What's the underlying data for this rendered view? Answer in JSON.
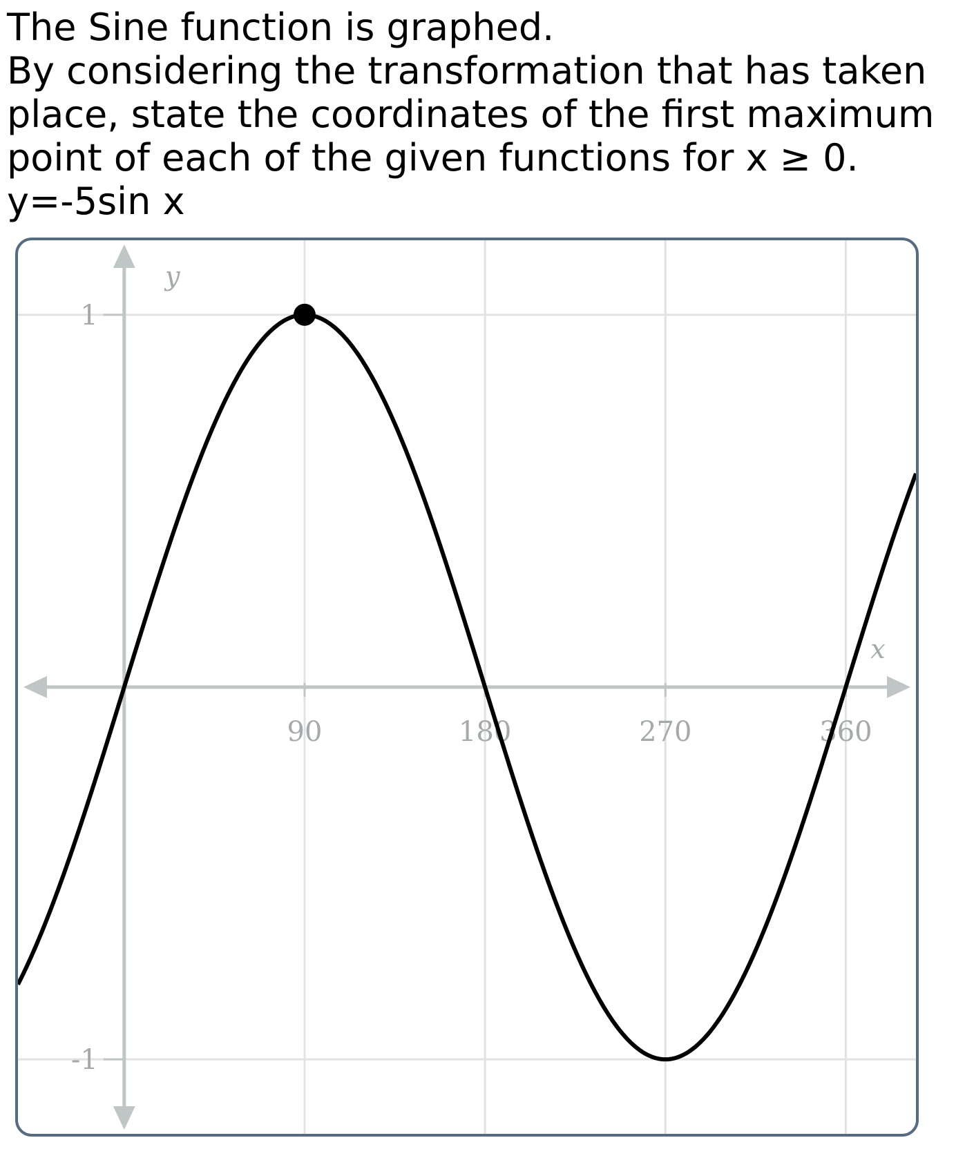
{
  "question": {
    "line1": "The Sine function is graphed.",
    "line2": "By considering the transformation that has taken",
    "line3": "place, state the coordinates of the first maximum",
    "line4": "point of each of the given functions for x ≥  0.",
    "line5": "y=-5sin x"
  },
  "chart_data": {
    "type": "line",
    "function": "sin",
    "xlabel": "x",
    "ylabel": "y",
    "x_ticks": [
      90,
      180,
      270,
      360
    ],
    "x_tick_labels": [
      "90",
      "180",
      "270",
      "360"
    ],
    "y_ticks": [
      1,
      -1
    ],
    "y_tick_labels": [
      "1",
      "-1"
    ],
    "xlim": [
      -53,
      395
    ],
    "ylim": [
      -1.2,
      1.2
    ],
    "grid": true,
    "marked_point": {
      "x": 90,
      "y": 1
    },
    "colors": {
      "curve": "#000000",
      "axis": "#bfc6c5",
      "grid": "#e2e2e2",
      "label": "#a4a9ab",
      "frame": "#566b80"
    }
  }
}
